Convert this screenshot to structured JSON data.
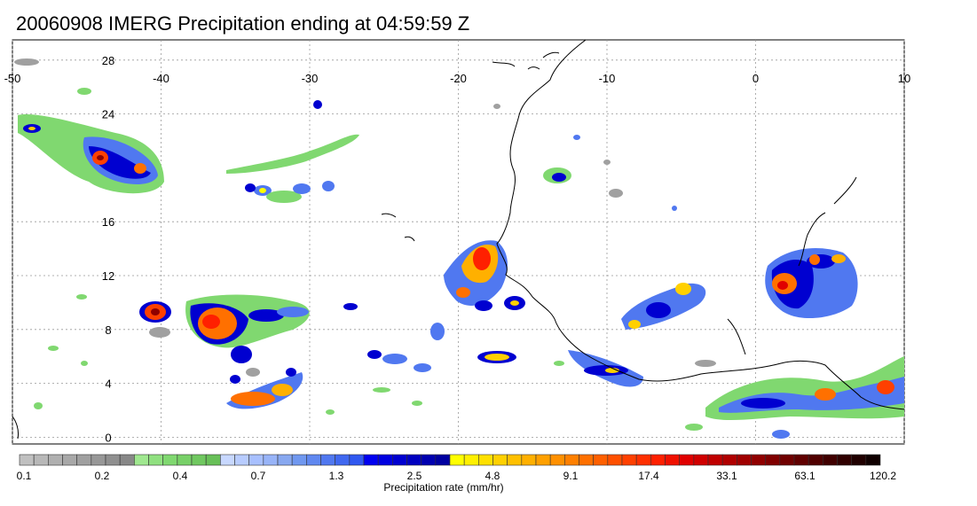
{
  "title": "20060908 IMERG Precipitation ending at 04:59:59 Z",
  "map": {
    "lon_ticks": [
      "-50",
      "-40",
      "-30",
      "-20",
      "-10",
      "0",
      "10"
    ],
    "lat_ticks": [
      "28",
      "24",
      "16",
      "12",
      "8",
      "4",
      "0"
    ],
    "lon_range": [
      -50,
      10
    ],
    "lat_range": [
      -0.5,
      29.5
    ],
    "gridlines": "dotted"
  },
  "colorbar": {
    "label": "Precipitation rate (mm/hr)",
    "tick_labels": [
      "0.1",
      "0.2",
      "0.4",
      "0.7",
      "1.3",
      "2.5",
      "4.8",
      "9.1",
      "17.4",
      "33.1",
      "63.1",
      "120.2"
    ],
    "colors": [
      "#c0c0c0",
      "#b8b8b8",
      "#b0b0b0",
      "#a8a8a8",
      "#a0a0a0",
      "#989898",
      "#909090",
      "#888888",
      "#a0e890",
      "#90e080",
      "#80d870",
      "#78d068",
      "#70c860",
      "#68c058",
      "#c8d8ff",
      "#b8ccff",
      "#a8c0ff",
      "#98b4f8",
      "#88a8f0",
      "#7098f0",
      "#6088f0",
      "#5078f0",
      "#4068f0",
      "#3058f0",
      "#0000f0",
      "#0000e0",
      "#0000d0",
      "#0000c0",
      "#0000b0",
      "#0000a0",
      "#ffff00",
      "#fff000",
      "#ffe000",
      "#ffd000",
      "#ffc000",
      "#ffb000",
      "#ffa000",
      "#ff9000",
      "#ff8000",
      "#ff7000",
      "#ff6000",
      "#ff5000",
      "#ff4000",
      "#ff3000",
      "#ff2000",
      "#f01000",
      "#e00000",
      "#d00000",
      "#c00000",
      "#b00000",
      "#a00000",
      "#900000",
      "#800000",
      "#700000",
      "#600000",
      "#500000",
      "#400000",
      "#300000",
      "#200000",
      "#100000"
    ]
  },
  "colors": {
    "coast": "#000000",
    "grid": "#999999",
    "light_rain": "#a0a0a0",
    "moderate": "#80d870",
    "heavy": "#0000d0",
    "intense": "#ff4000"
  }
}
